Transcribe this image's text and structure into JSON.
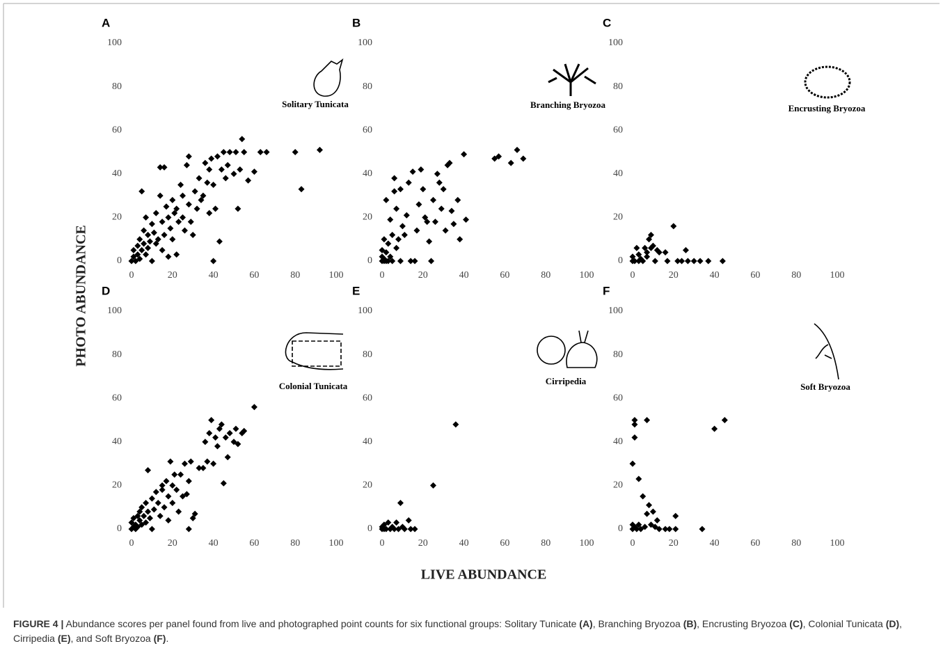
{
  "chart_data": [
    {
      "type": "scatter",
      "panel": "A",
      "label": "Solitary Tunicata",
      "color": "#000000",
      "x": [
        0,
        1,
        1,
        2,
        3,
        3,
        4,
        4,
        5,
        5,
        6,
        6,
        7,
        7,
        8,
        8,
        9,
        10,
        10,
        11,
        12,
        12,
        13,
        14,
        14,
        15,
        15,
        16,
        16,
        17,
        18,
        18,
        19,
        20,
        20,
        21,
        22,
        22,
        23,
        24,
        25,
        25,
        26,
        27,
        28,
        28,
        29,
        30,
        31,
        32,
        33,
        34,
        35,
        36,
        37,
        38,
        38,
        39,
        40,
        40,
        41,
        42,
        43,
        44,
        45,
        46,
        47,
        48,
        50,
        51,
        52,
        53,
        54,
        55,
        57,
        60,
        63,
        66,
        80,
        83,
        92
      ],
      "values": [
        0,
        2,
        5,
        0,
        3,
        7,
        1,
        10,
        32,
        5,
        8,
        14,
        3,
        20,
        6,
        12,
        9,
        17,
        0,
        13,
        22,
        8,
        10,
        43,
        30,
        18,
        5,
        43,
        12,
        25,
        20,
        2,
        15,
        28,
        10,
        22,
        24,
        3,
        18,
        35,
        20,
        30,
        14,
        44,
        48,
        26,
        18,
        12,
        32,
        24,
        38,
        28,
        30,
        45,
        36,
        42,
        22,
        47,
        35,
        0,
        24,
        48,
        9,
        42,
        50,
        38,
        44,
        50,
        40,
        50,
        24,
        42,
        56,
        50,
        37,
        41,
        50,
        50,
        50,
        33,
        51
      ],
      "xlim": [
        0,
        100
      ],
      "ylim": [
        0,
        100
      ],
      "xticks": [
        0,
        20,
        40,
        60,
        80,
        100
      ],
      "yticks": [
        0,
        20,
        40,
        60,
        80,
        100
      ]
    },
    {
      "type": "scatter",
      "panel": "B",
      "label": "Branching Bryozoa",
      "color": "#000000",
      "x": [
        0,
        0,
        0,
        1,
        1,
        1,
        2,
        2,
        2,
        3,
        3,
        4,
        4,
        5,
        5,
        6,
        6,
        7,
        7,
        8,
        9,
        9,
        10,
        11,
        12,
        13,
        14,
        15,
        16,
        17,
        18,
        19,
        20,
        21,
        22,
        23,
        24,
        25,
        26,
        27,
        28,
        29,
        30,
        31,
        32,
        33,
        34,
        35,
        37,
        38,
        40,
        41,
        55,
        57,
        63,
        66,
        69
      ],
      "values": [
        0,
        2,
        5,
        10,
        1,
        0,
        4,
        28,
        0,
        8,
        0,
        2,
        19,
        12,
        0,
        32,
        38,
        6,
        24,
        10,
        0,
        33,
        16,
        12,
        21,
        36,
        0,
        41,
        0,
        14,
        26,
        42,
        33,
        20,
        18,
        9,
        0,
        28,
        18,
        40,
        36,
        24,
        33,
        14,
        44,
        45,
        23,
        17,
        28,
        10,
        49,
        19,
        47,
        48,
        45,
        51,
        47
      ],
      "xlim": [
        0,
        100
      ],
      "ylim": [
        0,
        100
      ],
      "xticks": [
        0,
        20,
        40,
        60,
        80,
        100
      ],
      "yticks": [
        0,
        20,
        40,
        60,
        80,
        100
      ]
    },
    {
      "type": "scatter",
      "panel": "C",
      "label": "Encrusting Bryozoa",
      "color": "#000000",
      "x": [
        0,
        0,
        1,
        2,
        3,
        3,
        4,
        5,
        6,
        7,
        7,
        8,
        9,
        9,
        10,
        11,
        12,
        13,
        16,
        17,
        20,
        22,
        24,
        26,
        27,
        30,
        33,
        37,
        44
      ],
      "values": [
        0,
        2,
        0,
        6,
        3,
        0,
        1,
        0,
        6,
        4,
        2,
        10,
        12,
        6,
        7,
        0,
        5,
        4,
        4,
        0,
        16,
        0,
        0,
        5,
        0,
        0,
        0,
        0,
        0
      ],
      "xlim": [
        0,
        100
      ],
      "ylim": [
        0,
        100
      ],
      "xticks": [
        0,
        20,
        40,
        60,
        80,
        100
      ],
      "yticks": [
        0,
        20,
        40,
        60,
        80,
        100
      ]
    },
    {
      "type": "scatter",
      "panel": "D",
      "label": "Colonial Tunicata",
      "color": "#000000",
      "x": [
        0,
        0,
        1,
        1,
        2,
        2,
        3,
        3,
        4,
        4,
        5,
        5,
        6,
        7,
        7,
        8,
        8,
        9,
        10,
        10,
        11,
        12,
        13,
        14,
        15,
        15,
        16,
        17,
        18,
        18,
        19,
        20,
        20,
        21,
        22,
        23,
        24,
        25,
        26,
        27,
        28,
        28,
        29,
        30,
        31,
        33,
        35,
        36,
        37,
        38,
        39,
        40,
        41,
        42,
        43,
        44,
        45,
        46,
        47,
        48,
        50,
        51,
        52,
        54,
        55,
        60
      ],
      "values": [
        0,
        3,
        1,
        5,
        2,
        0,
        6,
        1,
        4,
        8,
        2,
        10,
        6,
        3,
        12,
        27,
        8,
        5,
        14,
        0,
        9,
        17,
        12,
        6,
        20,
        18,
        10,
        22,
        15,
        4,
        31,
        20,
        12,
        25,
        18,
        8,
        25,
        15,
        30,
        16,
        0,
        22,
        31,
        5,
        7,
        28,
        28,
        40,
        31,
        44,
        50,
        30,
        42,
        38,
        46,
        48,
        21,
        42,
        33,
        44,
        40,
        46,
        39,
        44,
        45,
        56
      ],
      "xlim": [
        0,
        100
      ],
      "ylim": [
        0,
        100
      ],
      "xticks": [
        0,
        20,
        40,
        60,
        80,
        100
      ],
      "yticks": [
        0,
        20,
        40,
        60,
        80,
        100
      ]
    },
    {
      "type": "scatter",
      "panel": "E",
      "label": "Cirripedia",
      "color": "#000000",
      "x": [
        0,
        0,
        1,
        1,
        2,
        3,
        4,
        5,
        6,
        7,
        8,
        9,
        10,
        11,
        13,
        14,
        16,
        25,
        36
      ],
      "values": [
        0,
        1,
        0,
        2,
        0,
        3,
        0,
        1,
        0,
        3,
        0,
        12,
        1,
        0,
        4,
        0,
        0,
        20,
        48
      ],
      "xlim": [
        0,
        100
      ],
      "ylim": [
        0,
        100
      ],
      "xticks": [
        0,
        20,
        40,
        60,
        80,
        100
      ],
      "yticks": [
        0,
        20,
        40,
        60,
        80,
        100
      ]
    },
    {
      "type": "scatter",
      "panel": "F",
      "label": "Soft Bryozoa",
      "color": "#000000",
      "x": [
        0,
        0,
        0,
        1,
        1,
        1,
        1,
        2,
        3,
        3,
        4,
        5,
        6,
        7,
        7,
        8,
        9,
        10,
        11,
        12,
        13,
        16,
        18,
        21,
        21,
        34,
        40,
        45
      ],
      "values": [
        0,
        30,
        2,
        48,
        42,
        50,
        1,
        0,
        23,
        2,
        0,
        15,
        1,
        50,
        7,
        11,
        2,
        8,
        1,
        4,
        0,
        0,
        0,
        6,
        0,
        0,
        46,
        50
      ],
      "xlim": [
        0,
        100
      ],
      "ylim": [
        0,
        100
      ],
      "xticks": [
        0,
        20,
        40,
        60,
        80,
        100
      ],
      "yticks": [
        0,
        20,
        40,
        60,
        80,
        100
      ]
    }
  ],
  "axis_labels": {
    "x": "LIVE ABUNDANCE",
    "y": "PHOTO ABUNDANCE"
  },
  "caption": [
    {
      "text": "FIGURE 4 |",
      "bold": true
    },
    {
      "text": " Abundance scores per panel found from live and photographed point counts for six functional groups: Solitary Tunicate ",
      "bold": false
    },
    {
      "text": "(A)",
      "bold": true
    },
    {
      "text": ", Branching Bryozoa ",
      "bold": false
    },
    {
      "text": "(B)",
      "bold": true
    },
    {
      "text": ", Encrusting Bryozoa ",
      "bold": false
    },
    {
      "text": "(C)",
      "bold": true
    },
    {
      "text": ", Colonial Tunicata ",
      "bold": false
    },
    {
      "text": "(D)",
      "bold": true
    },
    {
      "text": ", Cirripedia ",
      "bold": false
    },
    {
      "text": "(E)",
      "bold": true
    },
    {
      "text": ", and Soft Bryozoa ",
      "bold": false
    },
    {
      "text": "(F)",
      "bold": true
    },
    {
      "text": ".",
      "bold": false
    }
  ]
}
